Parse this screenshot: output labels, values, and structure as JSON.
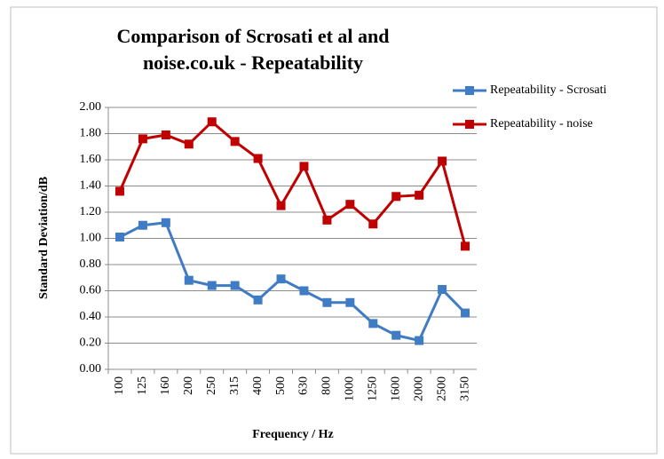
{
  "chart_data": {
    "type": "line",
    "title": "Comparison of Scrosati et al and noise.co.uk - Repeatability",
    "x_label": "Frequency / Hz",
    "y_label": "Standard Deviation/dB",
    "categories": [
      "100",
      "125",
      "160",
      "200",
      "250",
      "315",
      "400",
      "500",
      "630",
      "800",
      "1000",
      "1250",
      "1600",
      "2000",
      "2500",
      "3150"
    ],
    "series": [
      {
        "name": "Repeatability - Scrosati",
        "color": "#3f7cc4",
        "values": [
          1.01,
          1.1,
          1.12,
          0.68,
          0.64,
          0.64,
          0.53,
          0.69,
          0.6,
          0.51,
          0.51,
          0.35,
          0.26,
          0.22,
          0.61,
          0.43
        ]
      },
      {
        "name": "Repeatability - noise",
        "color": "#c00000",
        "values": [
          1.36,
          1.76,
          1.79,
          1.72,
          1.89,
          1.74,
          1.61,
          1.25,
          1.55,
          1.14,
          1.26,
          1.11,
          1.32,
          1.33,
          1.59,
          0.94
        ]
      }
    ],
    "ylim": [
      0,
      2
    ],
    "yticks": [
      {
        "value": 0,
        "label": "0.00"
      },
      {
        "value": 0.2,
        "label": "0.20"
      },
      {
        "value": 0.4,
        "label": "0.40"
      },
      {
        "value": 0.6,
        "label": "0.60"
      },
      {
        "value": 0.8,
        "label": "0.80"
      },
      {
        "value": 1,
        "label": "1.00"
      },
      {
        "value": 1.2,
        "label": "1.20"
      },
      {
        "value": 1.4,
        "label": "1.40"
      },
      {
        "value": 1.6,
        "label": "1.60"
      },
      {
        "value": 1.8,
        "label": "1.80"
      },
      {
        "value": 2,
        "label": "2.00"
      }
    ],
    "grid": true,
    "legend": "top-right"
  }
}
